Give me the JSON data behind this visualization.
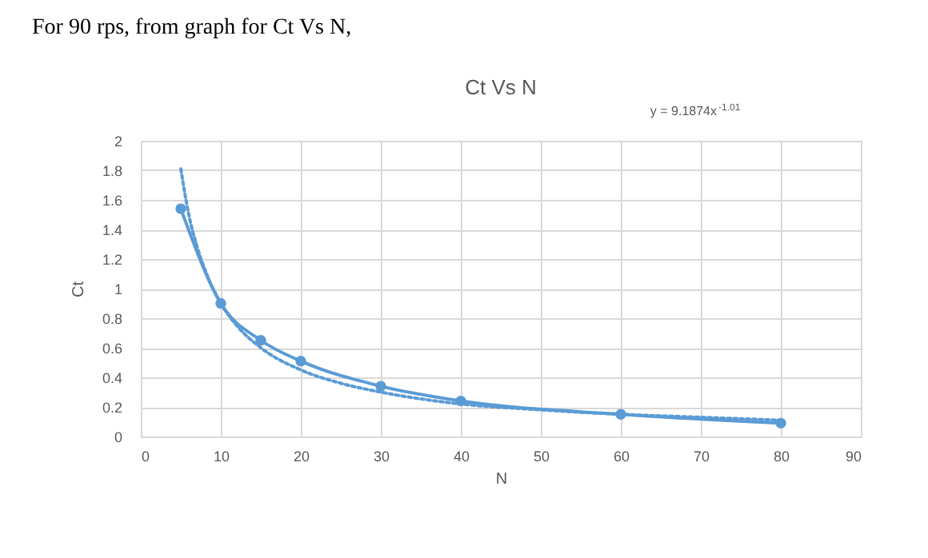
{
  "chart_data": {
    "type": "line",
    "title": "Ct Vs N",
    "xlabel": "N",
    "ylabel": "Ct",
    "annotations": [
      "For 90 rps, from graph for Ct Vs N,",
      "y = 9.1874x$^{-1.01}$"
    ],
    "series": [
      {
        "name": null,
        "color": "#5b9bd5",
        "marker": "circle",
        "line_style": "solid",
        "x": [
          5,
          10,
          15,
          20,
          30,
          40,
          60,
          80
        ],
        "values": [
          1.54,
          0.9,
          0.65,
          0.51,
          0.34,
          0.24,
          0.15,
          0.09
        ]
      },
      {
        "name": null,
        "color": "#5b9bd5",
        "marker": "none",
        "line_style": "dotted",
        "x": [
          5,
          6,
          7,
          8,
          10,
          12,
          15,
          20,
          25,
          30,
          40,
          50,
          60,
          70,
          80
        ],
        "values": [
          1.81,
          1.5,
          1.29,
          1.13,
          0.9,
          0.75,
          0.6,
          0.45,
          0.36,
          0.3,
          0.22,
          0.18,
          0.15,
          0.13,
          0.11
        ]
      }
    ],
    "xlim": [
      0,
      90
    ],
    "xticks": [
      0,
      10,
      20,
      30,
      40,
      50,
      60,
      70,
      80,
      90
    ],
    "ylim": [
      0,
      2
    ],
    "yticks": [
      0,
      0.2,
      0.4,
      0.6,
      0.8,
      1,
      1.2,
      1.4,
      1.6,
      1.8,
      2
    ],
    "grid": true,
    "legend": false
  }
}
